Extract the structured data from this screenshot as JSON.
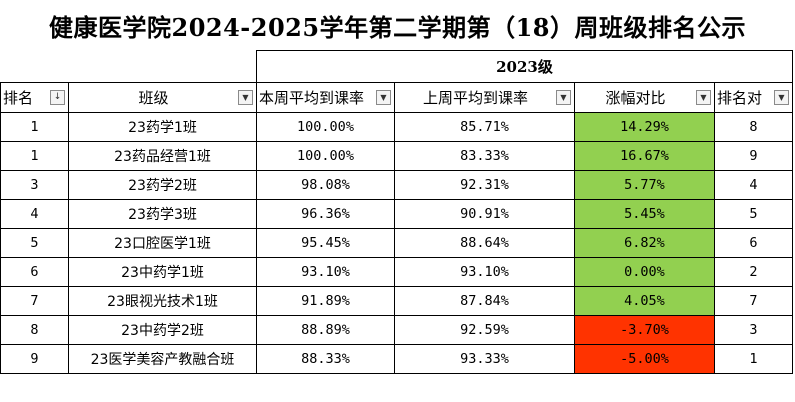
{
  "title": "健康医学院2024-2025学年第二学期第（18）周班级排名公示",
  "group_label": "2023级",
  "headers": {
    "rank": "排名",
    "class": "班级",
    "this_week": "本周平均到课率",
    "last_week": "上周平均到课率",
    "change": "涨幅对比",
    "rank_compare": "排名对"
  },
  "filter_icons": {
    "sorted": "↓",
    "dropdown": "▼"
  },
  "rows": [
    {
      "rank": "1",
      "class": "23药学1班",
      "this_week": "100.00%",
      "last_week": "85.71%",
      "change": "14.29%",
      "rank_compare": "8"
    },
    {
      "rank": "1",
      "class": "23药品经营1班",
      "this_week": "100.00%",
      "last_week": "83.33%",
      "change": "16.67%",
      "rank_compare": "9"
    },
    {
      "rank": "3",
      "class": "23药学2班",
      "this_week": "98.08%",
      "last_week": "92.31%",
      "change": "5.77%",
      "rank_compare": "4"
    },
    {
      "rank": "4",
      "class": "23药学3班",
      "this_week": "96.36%",
      "last_week": "90.91%",
      "change": "5.45%",
      "rank_compare": "5"
    },
    {
      "rank": "5",
      "class": "23口腔医学1班",
      "this_week": "95.45%",
      "last_week": "88.64%",
      "change": "6.82%",
      "rank_compare": "6"
    },
    {
      "rank": "6",
      "class": "23中药学1班",
      "this_week": "93.10%",
      "last_week": "93.10%",
      "change": "0.00%",
      "rank_compare": "2"
    },
    {
      "rank": "7",
      "class": "23眼视光技术1班",
      "this_week": "91.89%",
      "last_week": "87.84%",
      "change": "4.05%",
      "rank_compare": "7"
    },
    {
      "rank": "8",
      "class": "23中药学2班",
      "this_week": "88.89%",
      "last_week": "92.59%",
      "change": "-3.70%",
      "rank_compare": "3"
    },
    {
      "rank": "9",
      "class": "23医学美容产教融合班",
      "this_week": "88.33%",
      "last_week": "93.33%",
      "change": "-5.00%",
      "rank_compare": "1"
    }
  ],
  "colors": {
    "positive": "#92d050",
    "negative": "#ff3300"
  }
}
